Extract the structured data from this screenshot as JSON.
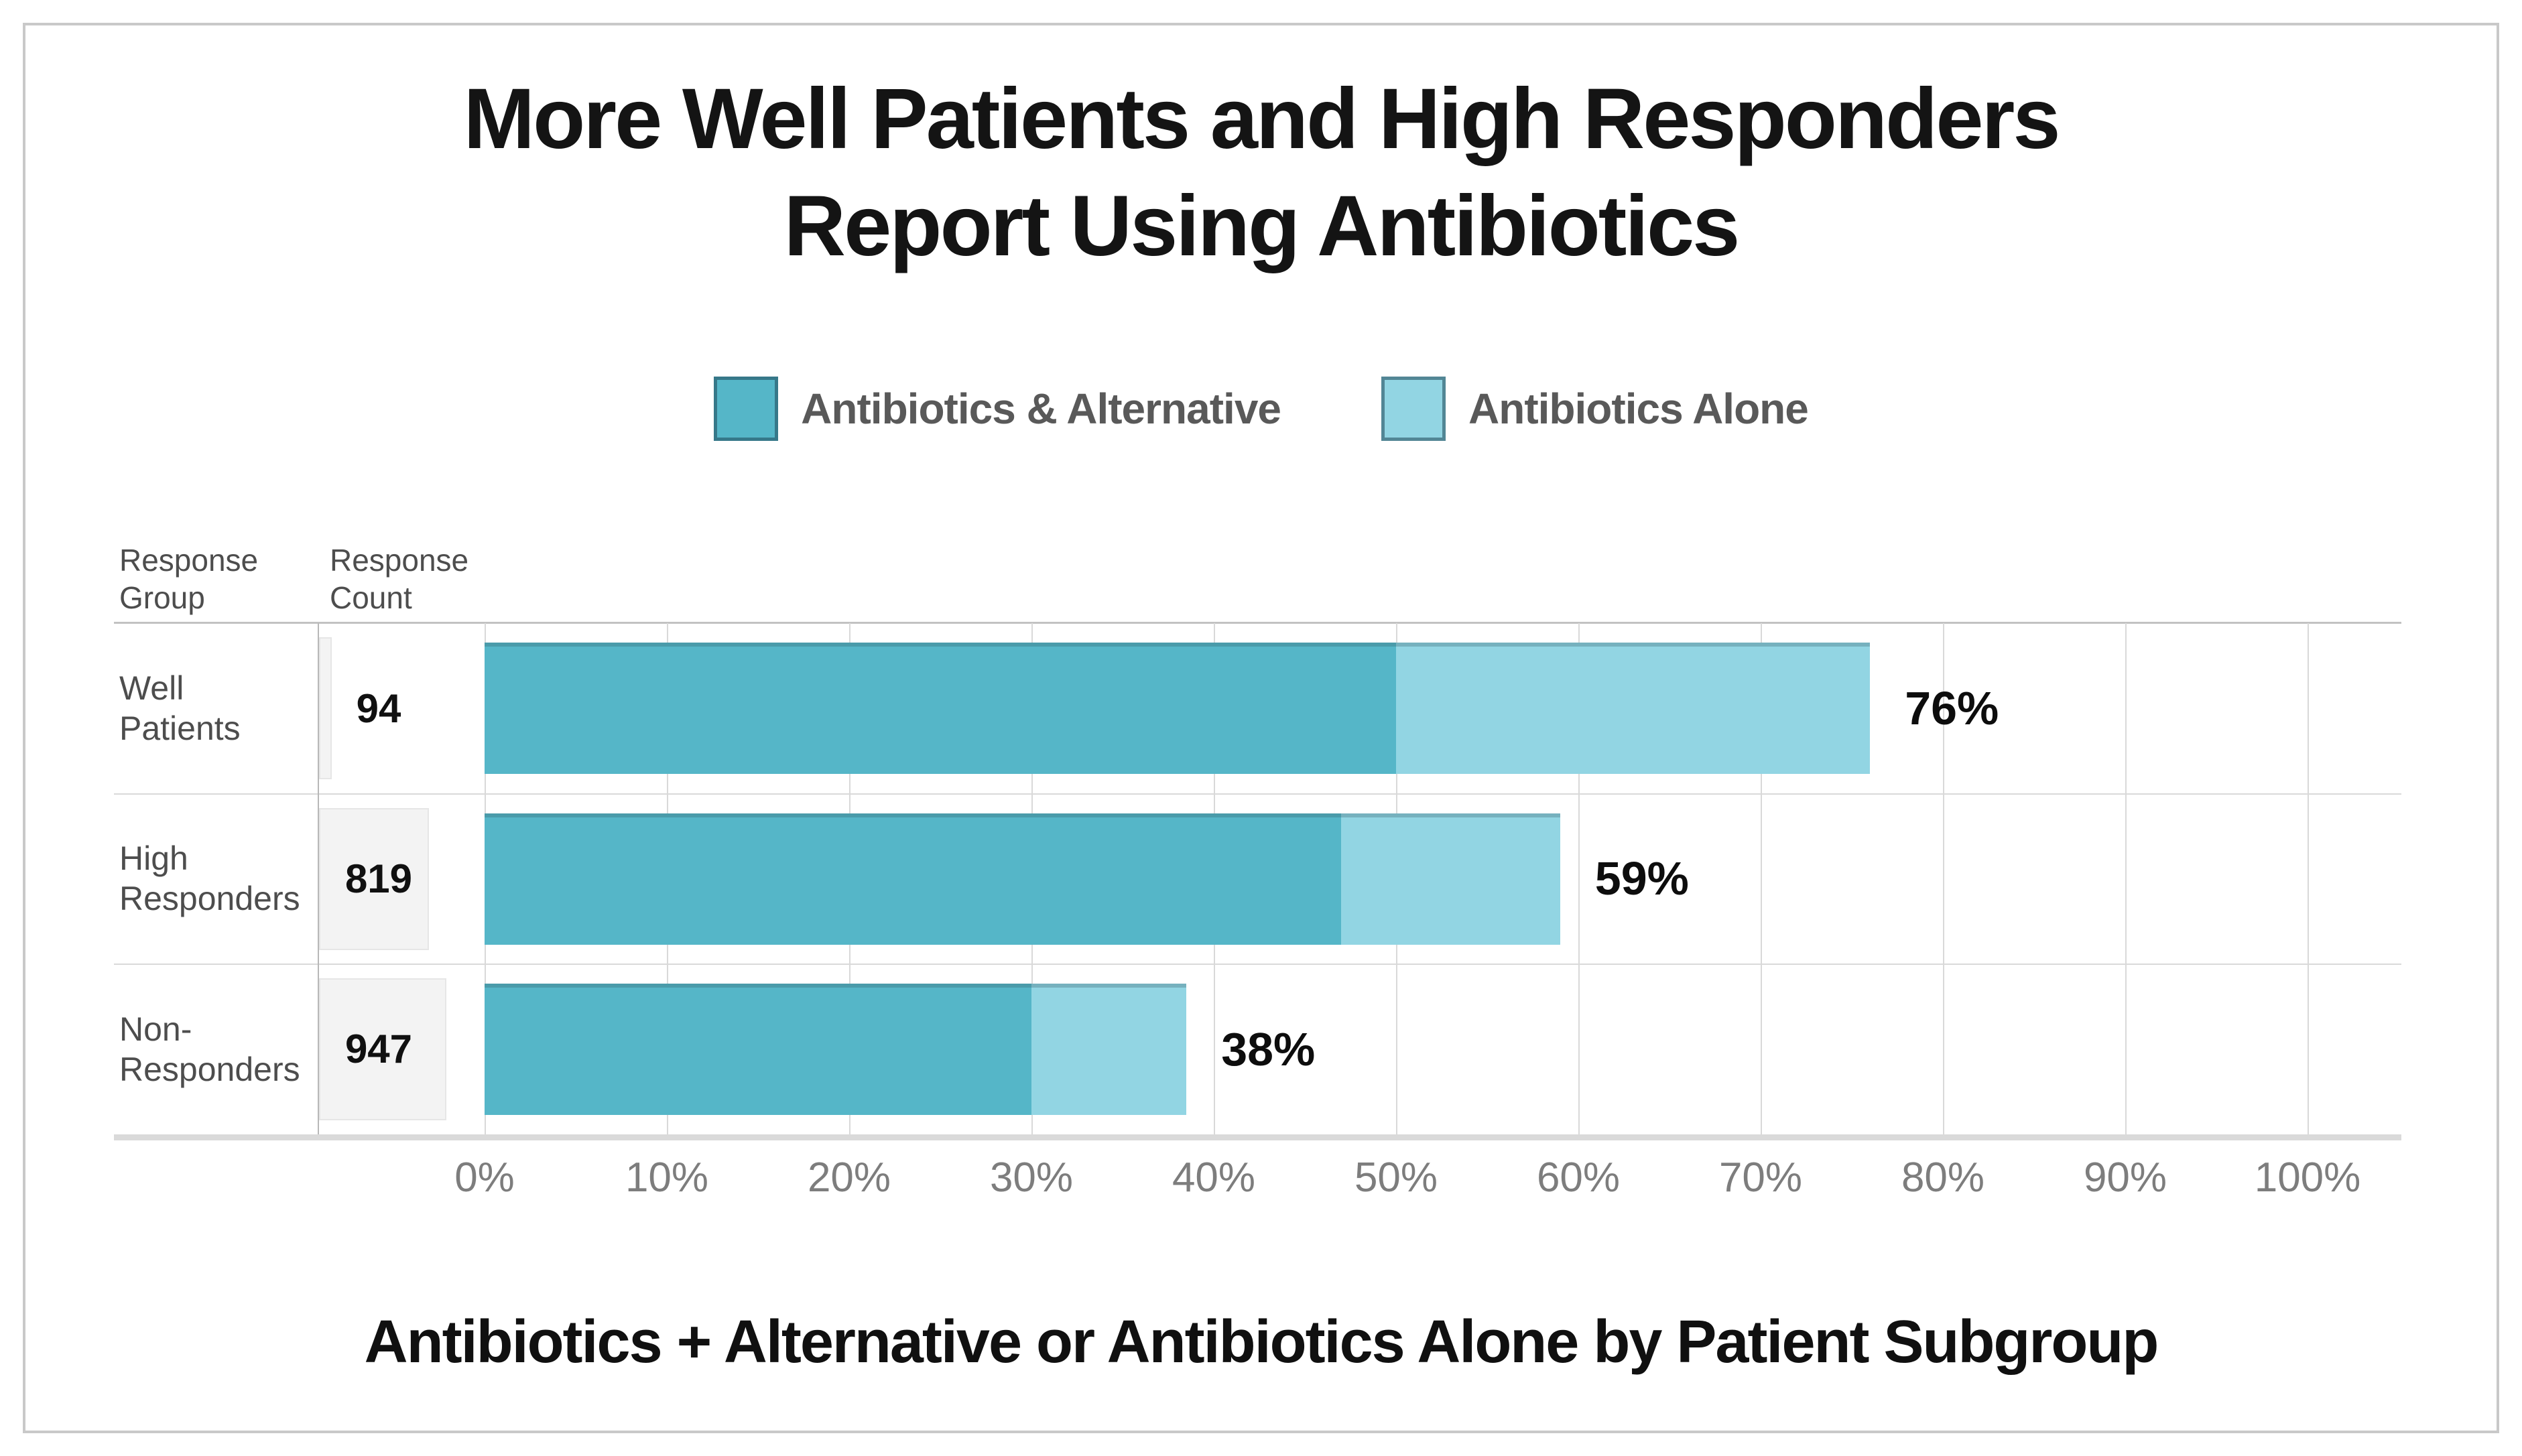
{
  "title_lines": [
    "More Well Patients and High Responders",
    "Report Using Antibiotics"
  ],
  "table_headers": {
    "group": "Response\nGroup",
    "count": "Response\nCount"
  },
  "caption": "Antibiotics + Alternative or Antibiotics Alone by Patient Subgroup",
  "colors": {
    "dark_teal": "#55b6c8",
    "light_teal": "#92d5e3",
    "grid": "#d9d9d9",
    "header_line": "#c2c2c2",
    "divider": "#b8b8b8",
    "axis": "#dadada",
    "label_grey": "#4d4d4d",
    "tick_grey": "#7d7d7d",
    "legend_text": "#595959",
    "count_bg": "#f3f3f3"
  },
  "chart_data": {
    "type": "bar",
    "orientation": "horizontal",
    "stacked": true,
    "title": "More Well Patients and High Responders Report Using Antibiotics",
    "column_headers": [
      "Response Group",
      "Response Count"
    ],
    "categories": [
      "Well Patients",
      "High Responders",
      "Non-Responders"
    ],
    "category_display": [
      "Well\nPatients",
      "High\nResponders",
      "Non-\nResponders"
    ],
    "response_counts": [
      94,
      819,
      947
    ],
    "series": [
      {
        "name": "Antibiotics & Alternative",
        "color": "#55b6c8",
        "values": [
          50,
          47,
          30
        ]
      },
      {
        "name": "Antibiotics Alone",
        "color": "#92d5e3",
        "values": [
          26,
          12,
          8.5
        ]
      }
    ],
    "total_labels": [
      "76%",
      "59%",
      "38%"
    ],
    "x_ticks": [
      "0%",
      "10%",
      "20%",
      "30%",
      "40%",
      "50%",
      "60%",
      "70%",
      "80%",
      "90%",
      "100%"
    ],
    "xlim": [
      0,
      100
    ],
    "grid": true,
    "legend_position": "top",
    "footnote": "Antibiotics + Alternative or Antibiotics Alone by Patient Subgroup"
  }
}
